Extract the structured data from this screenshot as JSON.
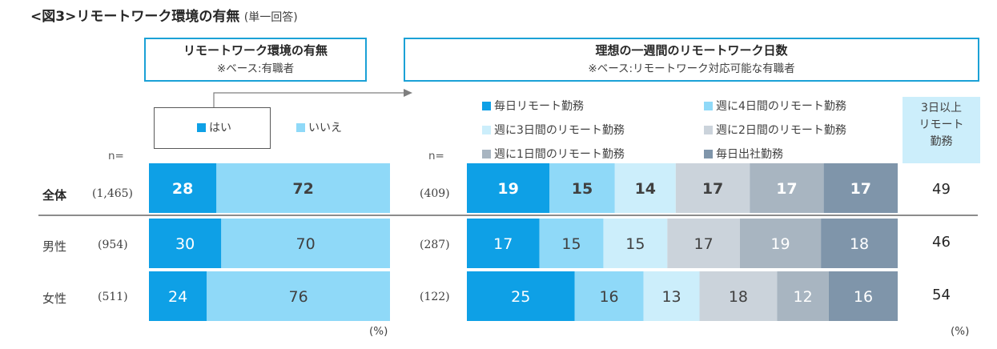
{
  "title": {
    "main": "<図3>リモートワーク環境の有無",
    "sub": "(単一回答)"
  },
  "left_panel": {
    "title": "リモートワーク環境の有無",
    "base": "※ベース:有職者"
  },
  "right_panel": {
    "title": "理想の一週間のリモートワーク日数",
    "base": "※ベース:リモートワーク対応可能な有職者"
  },
  "n_label": "n=",
  "pct_unit": "(%)",
  "side_header": [
    "3日以上",
    "リモート",
    "勤務"
  ],
  "colors": {
    "c1": "#0ea0e6",
    "c2": "#8fd9f8",
    "c3": "#cceefb",
    "c4": "#cbd3db",
    "c5": "#a8b5c1",
    "c6": "#7f95aa"
  },
  "chart_data": [
    {
      "type": "bar",
      "orientation": "horizontal",
      "stacked": true,
      "normalized": true,
      "title": "リモートワーク環境の有無",
      "categories": [
        "全体",
        "男性",
        "女性"
      ],
      "n": [
        "(1,465)",
        "(954)",
        "(511)"
      ],
      "series": [
        {
          "name": "はい",
          "color": "#0ea0e6",
          "values": [
            28,
            30,
            24
          ]
        },
        {
          "name": "いいえ",
          "color": "#8fd9f8",
          "values": [
            72,
            70,
            76
          ]
        }
      ],
      "legend": "top"
    },
    {
      "type": "bar",
      "orientation": "horizontal",
      "stacked": true,
      "normalized": true,
      "title": "理想の一週間のリモートワーク日数",
      "categories": [
        "全体",
        "男性",
        "女性"
      ],
      "n": [
        "(409)",
        "(287)",
        "(122)"
      ],
      "series": [
        {
          "name": "毎日リモート勤務",
          "color": "#0ea0e6",
          "values": [
            19,
            17,
            25
          ]
        },
        {
          "name": "週に4日間のリモート勤務",
          "color": "#8fd9f8",
          "values": [
            15,
            15,
            16
          ]
        },
        {
          "name": "週に3日間のリモート勤務",
          "color": "#cceefb",
          "values": [
            14,
            15,
            13
          ]
        },
        {
          "name": "週に2日間のリモート勤務",
          "color": "#cbd3db",
          "values": [
            17,
            17,
            18
          ]
        },
        {
          "name": "週に1日間のリモート勤務",
          "color": "#a8b5c1",
          "values": [
            17,
            19,
            12
          ]
        },
        {
          "name": "毎日出社勤務",
          "color": "#7f95aa",
          "values": [
            17,
            18,
            16
          ]
        }
      ],
      "legend": "top",
      "summary_column": {
        "values": [
          49,
          46,
          54
        ]
      }
    }
  ]
}
